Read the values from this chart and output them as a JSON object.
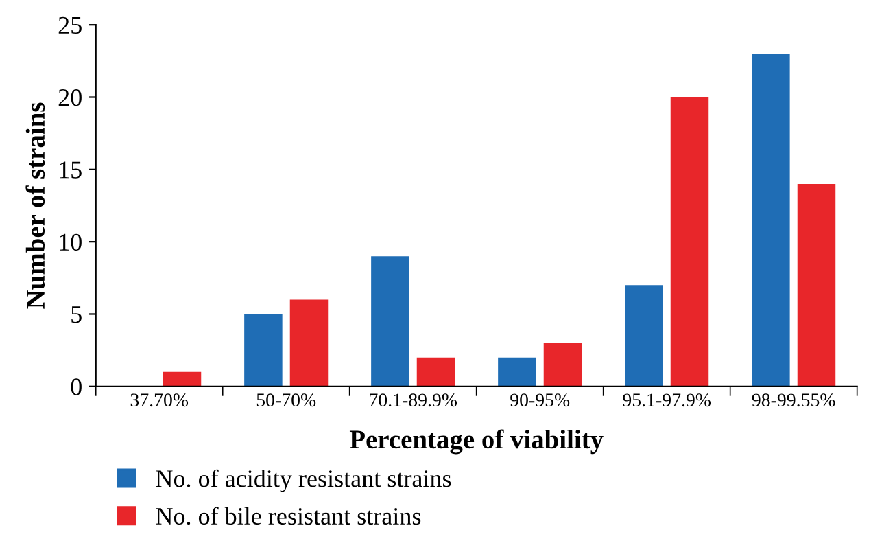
{
  "chart_data": {
    "type": "bar",
    "xlabel": "Percentage of viability",
    "ylabel": "Number of strains",
    "categories": [
      "37.70%",
      "50-70%",
      "70.1-89.9%",
      "90-95%",
      "95.1-97.9%",
      "98-99.55%"
    ],
    "series": [
      {
        "name": "No. of acidity resistant strains",
        "color": "#1f6db5",
        "values": [
          0,
          5,
          9,
          2,
          7,
          23
        ]
      },
      {
        "name": "No. of bile resistant strains",
        "color": "#e8262a",
        "values": [
          1,
          6,
          2,
          3,
          20,
          14
        ]
      }
    ],
    "ylim": [
      0,
      25
    ],
    "yticks": [
      0,
      5,
      10,
      15,
      20,
      25
    ],
    "grid": false,
    "legend": "bottom"
  }
}
